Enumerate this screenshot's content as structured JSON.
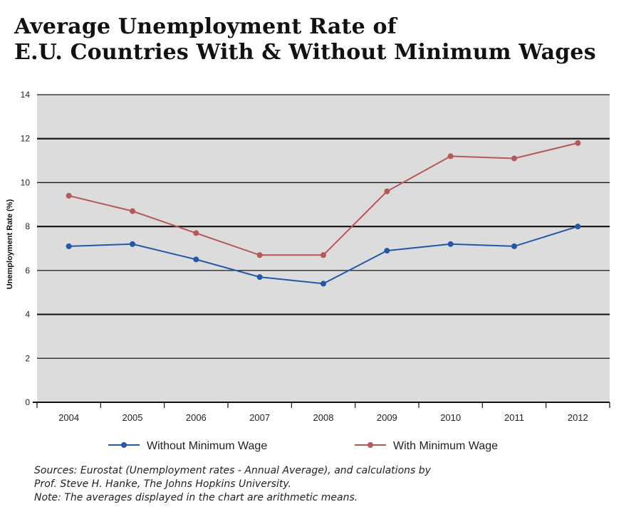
{
  "title": {
    "line1": "Average Unemployment Rate of",
    "line2": "E.U. Countries With & Without Minimum Wages"
  },
  "notes": {
    "line1": "Sources: Eurostat (Unemployment rates - Annual Average), and calculations by",
    "line2": "Prof. Steve H. Hanke, The Johns Hopkins University.",
    "line3": "Note: The averages displayed in the chart are arithmetic means."
  },
  "chart_data": {
    "type": "line",
    "title": "Average Unemployment Rate of E.U. Countries With & Without Minimum Wages",
    "xlabel": "",
    "ylabel": "Unemployment Rate (%)",
    "categories": [
      "2004",
      "2005",
      "2006",
      "2007",
      "2008",
      "2009",
      "2010",
      "2011",
      "2012"
    ],
    "ylim": [
      0,
      14
    ],
    "yticks": [
      0,
      2,
      4,
      6,
      8,
      10,
      12,
      14
    ],
    "grid": true,
    "legend": "bottom",
    "plot_background": "#dcdcdc",
    "series": [
      {
        "name": "Without Minimum Wage",
        "color": "#2457a6",
        "values": [
          7.1,
          7.2,
          6.5,
          5.7,
          5.4,
          6.9,
          7.2,
          7.1,
          8.0
        ]
      },
      {
        "name": "With Minimum Wage",
        "color": "#b5585a",
        "values": [
          9.4,
          8.7,
          7.7,
          6.7,
          6.7,
          9.6,
          11.2,
          11.1,
          11.8
        ]
      }
    ]
  }
}
